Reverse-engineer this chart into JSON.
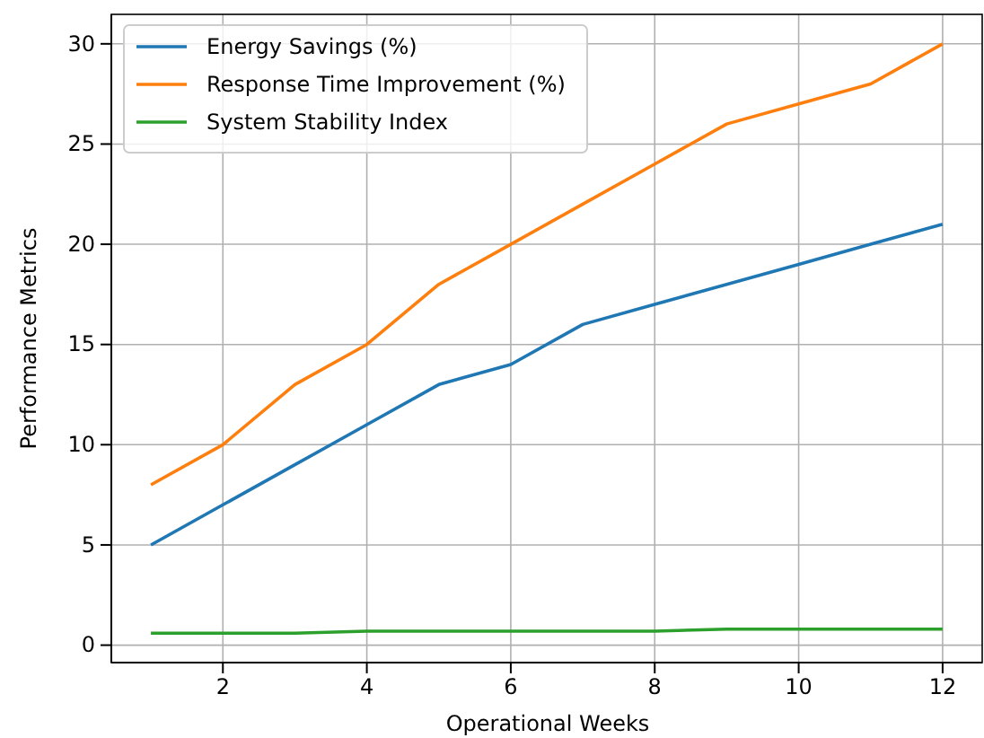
{
  "chart_data": {
    "type": "line",
    "xlabel": "Operational Weeks",
    "ylabel": "Performance Metrics",
    "x": [
      1,
      2,
      3,
      4,
      5,
      6,
      7,
      8,
      9,
      10,
      11,
      12
    ],
    "series": [
      {
        "name": "Energy Savings (%)",
        "color": "#1f77b4",
        "values": [
          5,
          7,
          9,
          11,
          13,
          14,
          16,
          17,
          18,
          19,
          20,
          21
        ]
      },
      {
        "name": "Response Time Improvement (%)",
        "color": "#ff7f0e",
        "values": [
          8,
          10,
          13,
          15,
          18,
          20,
          22,
          24,
          26,
          27,
          28,
          30
        ]
      },
      {
        "name": "System Stability Index",
        "color": "#2ca02c",
        "values": [
          0.6,
          0.6,
          0.6,
          0.7,
          0.7,
          0.7,
          0.7,
          0.7,
          0.8,
          0.8,
          0.8,
          0.8
        ]
      }
    ],
    "xlim": [
      0.45,
      12.55
    ],
    "ylim": [
      -0.87,
      31.47
    ],
    "xticks": [
      2,
      4,
      6,
      8,
      10,
      12
    ],
    "yticks": [
      0,
      5,
      10,
      15,
      20,
      25,
      30
    ],
    "grid": true,
    "legend": "top left",
    "marker": "none",
    "line_style": "solid"
  }
}
